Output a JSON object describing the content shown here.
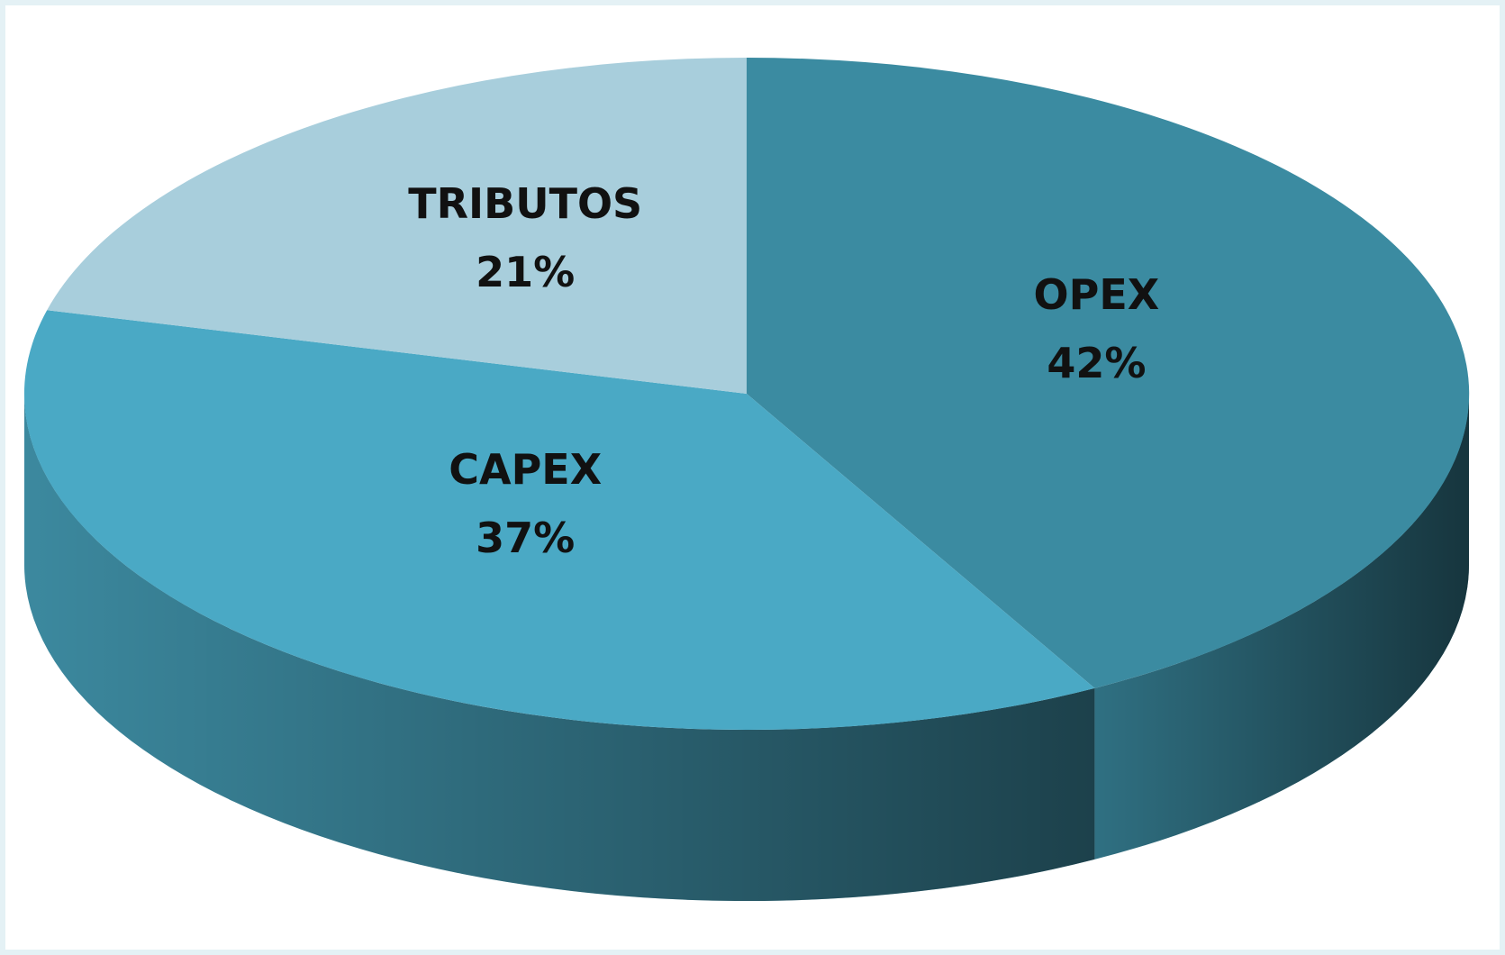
{
  "chart_data": {
    "type": "pie",
    "categories": [
      "OPEX",
      "CAPEX",
      "TRIBUTOS"
    ],
    "values": [
      42,
      37,
      21
    ],
    "value_labels": [
      "42%",
      "37%",
      "21%"
    ],
    "colors": [
      "#3b8ba1",
      "#4aa9c5",
      "#a8cedc"
    ]
  }
}
